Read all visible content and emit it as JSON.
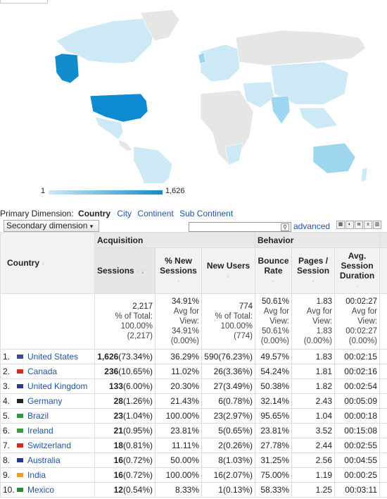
{
  "map": {
    "legend_min": "1",
    "legend_max": "1,626",
    "colors": {
      "empty": "#e6e6e6",
      "low": "#cde9f5",
      "mid": "#9fd6ef",
      "high": "#118ccc",
      "top": "#0e8ad0"
    },
    "highlighted_countries": [
      "United States",
      "Canada",
      "United Kingdom",
      "Germany",
      "Brazil",
      "Ireland",
      "Switzerland",
      "Australia",
      "India",
      "Mexico"
    ]
  },
  "dimensions": {
    "primary_label": "Primary Dimension:",
    "primary_selected": "Country",
    "options": [
      "City",
      "Continent",
      "Sub Continent"
    ],
    "secondary": "Secondary dimension",
    "advanced": "advanced"
  },
  "table": {
    "groups": {
      "acquisition": "Acquisition",
      "behavior": "Behavior"
    },
    "headers": {
      "country": "Country",
      "sessions": "Sessions",
      "new_sessions": "% New Sessions",
      "new_users": "New Users",
      "bounce": "Bounce Rate",
      "pages": "Pages / Session",
      "duration": "Avg. Session Duration"
    },
    "totals": {
      "sessions": [
        "2,217",
        "% of Total:",
        "100.00%",
        "(2,217)"
      ],
      "new_sessions": [
        "34.91%",
        "Avg for",
        "View:",
        "34.91%",
        "(0.00%)"
      ],
      "new_users": [
        "774",
        "% of Total:",
        "100.00%",
        "(774)"
      ],
      "bounce": [
        "50.61%",
        "Avg for",
        "View:",
        "50.61%",
        "(0.00%)"
      ],
      "pages": [
        "1.83",
        "Avg for",
        "View:",
        "1.83",
        "(0.00%)"
      ],
      "duration": [
        "00:02:27",
        "Avg for",
        "View:",
        "00:02:27",
        "(0.00%)"
      ]
    },
    "rows": [
      {
        "n": "1.",
        "country": "United States",
        "flag": "#3c4b8c",
        "sessions": "1,626",
        "sessions_pct": "(73.34%)",
        "new_sessions": "36.29%",
        "new_users": "590",
        "new_users_pct": "(76.23%)",
        "bounce": "49.57%",
        "pages": "1.83",
        "duration": "00:02:15"
      },
      {
        "n": "2.",
        "country": "Canada",
        "flag": "#d52b1e",
        "sessions": "236",
        "sessions_pct": "(10.65%)",
        "new_sessions": "11.02%",
        "new_users": "26",
        "new_users_pct": "(3.36%)",
        "bounce": "54.24%",
        "pages": "1.81",
        "duration": "00:02:16"
      },
      {
        "n": "3.",
        "country": "United Kingdom",
        "flag": "#2b3d8c",
        "sessions": "133",
        "sessions_pct": "(6.00%)",
        "new_sessions": "20.30%",
        "new_users": "27",
        "new_users_pct": "(3.49%)",
        "bounce": "50.38%",
        "pages": "1.82",
        "duration": "00:02:54"
      },
      {
        "n": "4.",
        "country": "Germany",
        "flag": "#222222",
        "sessions": "28",
        "sessions_pct": "(1.26%)",
        "new_sessions": "21.43%",
        "new_users": "6",
        "new_users_pct": "(0.78%)",
        "bounce": "32.14%",
        "pages": "2.43",
        "duration": "00:05:09"
      },
      {
        "n": "5.",
        "country": "Brazil",
        "flag": "#2a9a3a",
        "sessions": "23",
        "sessions_pct": "(1.04%)",
        "new_sessions": "100.00%",
        "new_users": "23",
        "new_users_pct": "(2.97%)",
        "bounce": "95.65%",
        "pages": "1.04",
        "duration": "00:00:18"
      },
      {
        "n": "6.",
        "country": "Ireland",
        "flag": "#3a9a44",
        "sessions": "21",
        "sessions_pct": "(0.95%)",
        "new_sessions": "23.81%",
        "new_users": "5",
        "new_users_pct": "(0.65%)",
        "bounce": "23.81%",
        "pages": "3.52",
        "duration": "00:15:08"
      },
      {
        "n": "7.",
        "country": "Switzerland",
        "flag": "#d52b1e",
        "sessions": "18",
        "sessions_pct": "(0.81%)",
        "new_sessions": "11.11%",
        "new_users": "2",
        "new_users_pct": "(0.26%)",
        "bounce": "27.78%",
        "pages": "2.44",
        "duration": "00:02:55"
      },
      {
        "n": "8.",
        "country": "Australia",
        "flag": "#1f3a8a",
        "sessions": "16",
        "sessions_pct": "(0.72%)",
        "new_sessions": "50.00%",
        "new_users": "8",
        "new_users_pct": "(1.03%)",
        "bounce": "31.25%",
        "pages": "2.56",
        "duration": "00:04:55"
      },
      {
        "n": "9.",
        "country": "India",
        "flag": "#f29a2e",
        "sessions": "16",
        "sessions_pct": "(0.72%)",
        "new_sessions": "100.00%",
        "new_users": "16",
        "new_users_pct": "(2.07%)",
        "bounce": "75.00%",
        "pages": "1.19",
        "duration": "00:00:25"
      },
      {
        "n": "10.",
        "country": "Mexico",
        "flag": "#2a8a3a",
        "sessions": "12",
        "sessions_pct": "(0.54%)",
        "new_sessions": "8.33%",
        "new_users": "1",
        "new_users_pct": "(0.13%)",
        "bounce": "58.33%",
        "pages": "1.25",
        "duration": "00:03:11"
      }
    ]
  }
}
